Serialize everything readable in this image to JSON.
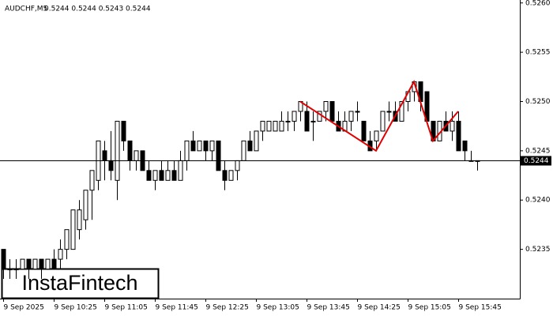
{
  "chart_data": {
    "type": "candlestick",
    "title": "AUDCHF,M5",
    "subtitle": "0.5244 0.5244 0.5243 0.5244",
    "brand": "InstaFintech",
    "open": [
      0.5235,
      0.5233,
      0.5233,
      0.5233,
      0.5234,
      0.5233,
      0.5234,
      0.5233,
      0.5234,
      0.5234,
      0.5235,
      0.5235,
      0.5237,
      0.5238,
      0.5241,
      0.5242,
      0.5245,
      0.5244,
      0.5242,
      0.5248,
      0.5246,
      0.5244,
      0.5245,
      0.5243,
      0.5242,
      0.5243,
      0.5242,
      0.5243,
      0.5242,
      0.5244,
      0.5246,
      0.5245,
      0.5246,
      0.5245,
      0.5246,
      0.5243,
      0.5242,
      0.5243,
      0.5244,
      0.5246,
      0.5245,
      0.5247,
      0.5247,
      0.5247,
      0.5247,
      0.5248,
      0.5248,
      0.5249,
      0.5249,
      0.5248,
      0.5248,
      0.5249,
      0.525,
      0.5248,
      0.5247,
      0.5248,
      0.5249,
      0.5248,
      0.5246,
      0.5246,
      0.5247,
      0.5249,
      0.5249,
      0.5248,
      0.525,
      0.5251,
      0.5252,
      0.5251,
      0.5248,
      0.5246,
      0.5248,
      0.5247,
      0.5248,
      0.5246,
      0.5244,
      0.5244
    ],
    "high": [
      0.5235,
      0.5234,
      0.5234,
      0.5234,
      0.5234,
      0.5234,
      0.5234,
      0.5234,
      0.5235,
      0.5236,
      0.5237,
      0.5239,
      0.524,
      0.5241,
      0.5243,
      0.5246,
      0.5246,
      0.5247,
      0.5248,
      0.5248,
      0.5246,
      0.5245,
      0.5245,
      0.5244,
      0.5243,
      0.5244,
      0.5244,
      0.5244,
      0.5245,
      0.5246,
      0.5247,
      0.5246,
      0.5246,
      0.5246,
      0.5246,
      0.5244,
      0.5243,
      0.5244,
      0.5246,
      0.5247,
      0.5247,
      0.5248,
      0.5248,
      0.5248,
      0.5249,
      0.5249,
      0.5249,
      0.525,
      0.525,
      0.5249,
      0.5249,
      0.525,
      0.525,
      0.5249,
      0.5249,
      0.5249,
      0.525,
      0.5248,
      0.5247,
      0.5247,
      0.5249,
      0.525,
      0.525,
      0.525,
      0.5251,
      0.5252,
      0.5252,
      0.5251,
      0.5248,
      0.5248,
      0.5249,
      0.5249,
      0.5249,
      0.5246,
      0.5245,
      0.5244
    ],
    "low": [
      0.5232,
      0.5232,
      0.5232,
      0.5233,
      0.5232,
      0.5233,
      0.5232,
      0.5233,
      0.5233,
      0.5233,
      0.5234,
      0.5235,
      0.5236,
      0.5237,
      0.5238,
      0.5241,
      0.5242,
      0.5242,
      0.524,
      0.5245,
      0.5243,
      0.5243,
      0.5243,
      0.5242,
      0.5241,
      0.5242,
      0.5242,
      0.5242,
      0.5242,
      0.5243,
      0.5245,
      0.5245,
      0.5244,
      0.5244,
      0.5243,
      0.5241,
      0.5242,
      0.5242,
      0.5244,
      0.5245,
      0.5245,
      0.5246,
      0.5247,
      0.5247,
      0.5247,
      0.5247,
      0.5247,
      0.5248,
      0.5247,
      0.5246,
      0.5248,
      0.5248,
      0.5248,
      0.5247,
      0.5247,
      0.5247,
      0.5248,
      0.5246,
      0.5245,
      0.5245,
      0.5247,
      0.5248,
      0.5248,
      0.5248,
      0.5249,
      0.525,
      0.5249,
      0.5248,
      0.5246,
      0.5246,
      0.5247,
      0.5246,
      0.5245,
      0.5244,
      0.5244,
      0.5243
    ],
    "close": [
      0.5233,
      0.5233,
      0.5233,
      0.5234,
      0.5233,
      0.5234,
      0.5233,
      0.5234,
      0.5233,
      0.5235,
      0.5237,
      0.5239,
      0.5239,
      0.5241,
      0.5243,
      0.5246,
      0.5244,
      0.5243,
      0.5248,
      0.5246,
      0.5244,
      0.5245,
      0.5243,
      0.5242,
      0.5243,
      0.5242,
      0.5243,
      0.5242,
      0.5244,
      0.5246,
      0.5245,
      0.5246,
      0.5245,
      0.5246,
      0.5243,
      0.5242,
      0.5243,
      0.5244,
      0.5246,
      0.5245,
      0.5247,
      0.5248,
      0.5248,
      0.5248,
      0.5248,
      0.5248,
      0.5249,
      0.525,
      0.5247,
      0.5248,
      0.5249,
      0.525,
      0.5248,
      0.5247,
      0.5248,
      0.5249,
      0.5249,
      0.5246,
      0.5245,
      0.5247,
      0.5249,
      0.5249,
      0.5248,
      0.525,
      0.5251,
      0.5252,
      0.525,
      0.5248,
      0.5246,
      0.5248,
      0.5247,
      0.5248,
      0.5245,
      0.5245,
      0.5244,
      0.5244
    ],
    "pattern": {
      "color": "#e00000",
      "x": [
        47,
        59,
        65,
        68,
        72
      ],
      "values": [
        0.525,
        0.5245,
        0.5252,
        0.5246,
        0.5249
      ]
    },
    "last_price": 0.5244,
    "ylim": [
      0.523,
      0.52603
    ],
    "yticks": [
      {
        "value": 0.526,
        "label": "0.5260"
      },
      0.5255,
      {
        "value": 0.525,
        "label": "0.5250"
      },
      0.5245,
      {
        "value": 0.524,
        "label": "0.5240"
      },
      0.5235
    ],
    "xlim": [
      -0.5,
      81.75
    ],
    "xticks": [
      {
        "value": 0,
        "label": "9 Sep 2025"
      },
      {
        "value": 8,
        "label": "9 Sep 10:25"
      },
      {
        "value": 16,
        "label": "9 Sep 11:05"
      },
      {
        "value": 24,
        "label": "9 Sep 11:45"
      },
      {
        "value": 32,
        "label": "9 Sep 12:25"
      },
      {
        "value": 40,
        "label": "9 Sep 13:05"
      },
      {
        "value": 48,
        "label": "9 Sep 13:45"
      },
      {
        "value": 56,
        "label": "9 Sep 14:25"
      },
      {
        "value": 64,
        "label": "9 Sep 15:05"
      },
      {
        "value": 72,
        "label": "9 Sep 15:45"
      }
    ],
    "bull_color": "#ffffff",
    "bear_color": "#000000"
  }
}
